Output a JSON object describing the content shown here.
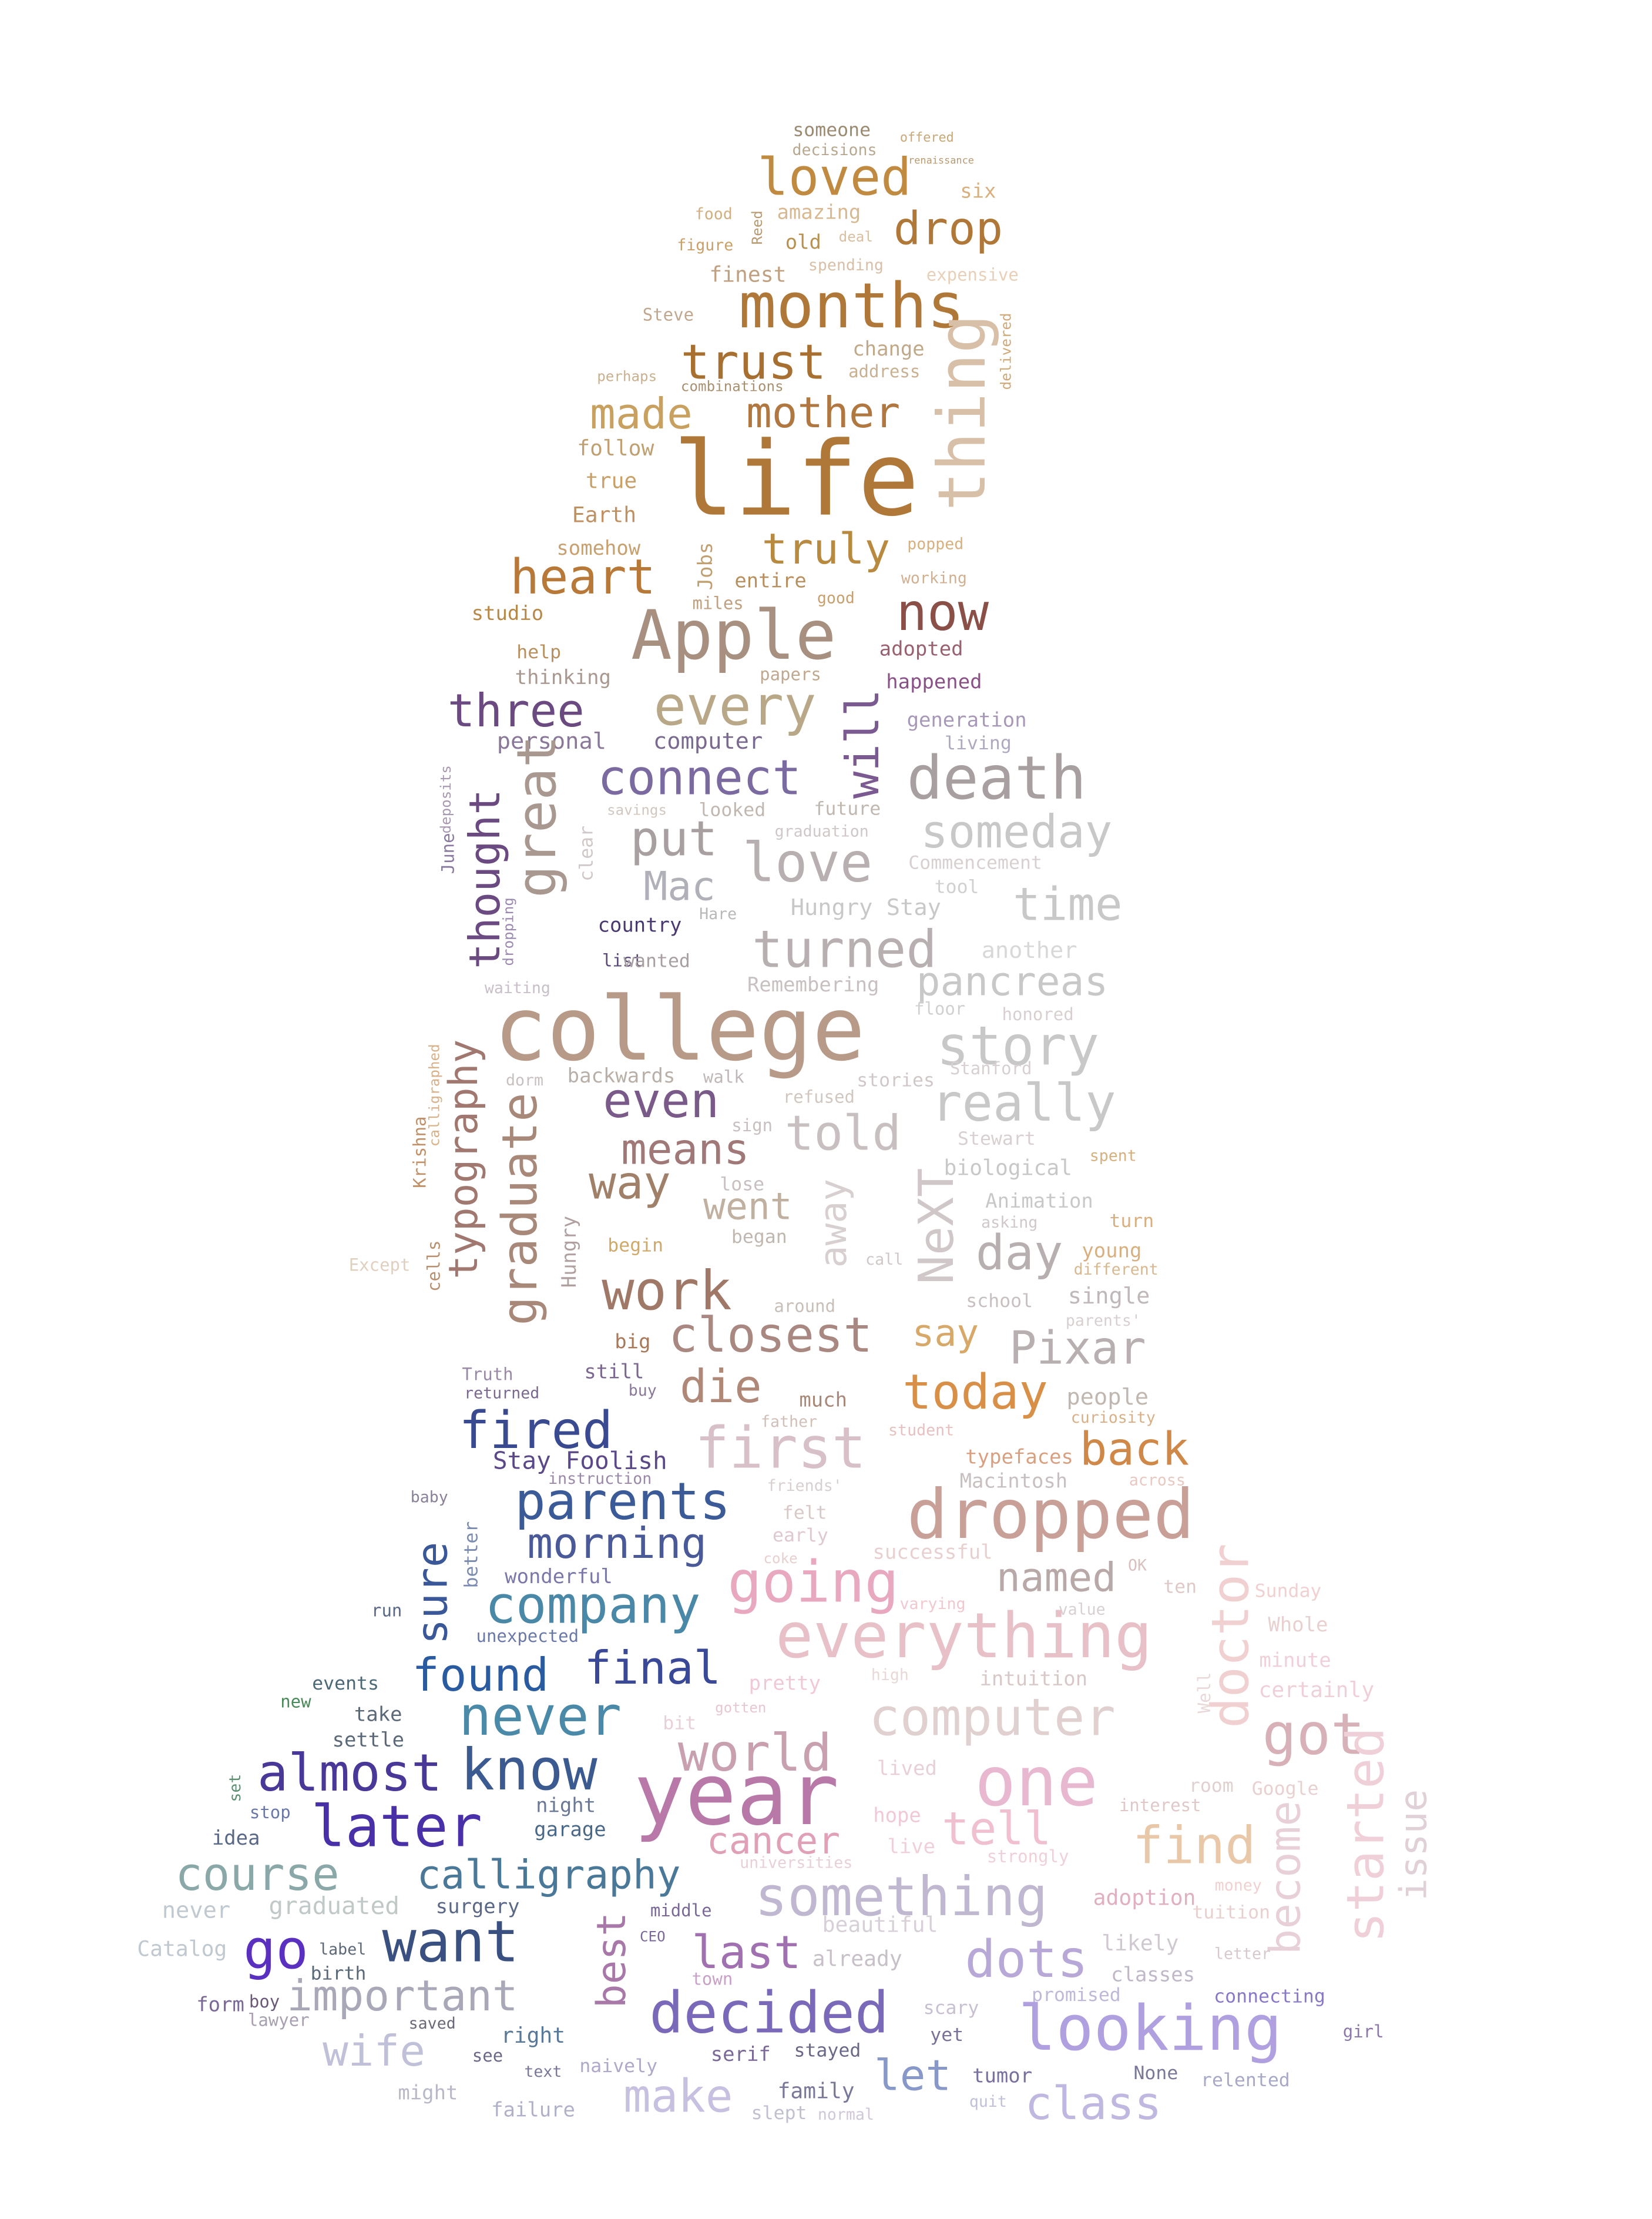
{
  "image": {
    "kind": "word-cloud",
    "shape": "seated-figure-silhouette",
    "background": "#ffffff",
    "palette": [
      "#b07838",
      "#c8a060",
      "#a8a0a0",
      "#6a4a80",
      "#2a5aa0",
      "#4a8aa8",
      "#5a30a8",
      "#e8a0b8",
      "#c0b0e0",
      "#d8c0a0"
    ]
  },
  "words": [
    {
      "t": "someone",
      "c": "#9a8a70"
    },
    {
      "t": "offered",
      "c": "#c8a878"
    },
    {
      "t": "decisions",
      "c": "#b8a890"
    },
    {
      "t": "loved",
      "c": "#c08a40"
    },
    {
      "t": "renaissance",
      "c": "#b89a70"
    },
    {
      "t": "six",
      "c": "#d8b080"
    },
    {
      "t": "food",
      "c": "#d0b080"
    },
    {
      "t": "amazing",
      "c": "#d8b890"
    },
    {
      "t": "Reed",
      "c": "#b89a70"
    },
    {
      "t": "drop",
      "c": "#b07838"
    },
    {
      "t": "figure",
      "c": "#c8a068"
    },
    {
      "t": "old",
      "c": "#b89050"
    },
    {
      "t": "deal",
      "c": "#d8c0a0"
    },
    {
      "t": "finest",
      "c": "#c0a080"
    },
    {
      "t": "spending",
      "c": "#d8c0a8"
    },
    {
      "t": "expensive",
      "c": "#e8d0b8"
    },
    {
      "t": "months",
      "c": "#b07838"
    },
    {
      "t": "Steve",
      "c": "#c0a890"
    },
    {
      "t": "trust",
      "c": "#a87030"
    },
    {
      "t": "change",
      "c": "#c0a888"
    },
    {
      "t": "address",
      "c": "#c8b090"
    },
    {
      "t": "thing",
      "c": "#d8c0a8"
    },
    {
      "t": "delivered",
      "c": "#d0a878"
    },
    {
      "t": "perhaps",
      "c": "#c8b090"
    },
    {
      "t": "combinations",
      "c": "#a89070"
    },
    {
      "t": "made",
      "c": "#c8a060"
    },
    {
      "t": "mother",
      "c": "#b07840"
    },
    {
      "t": "follow",
      "c": "#c0a070"
    },
    {
      "t": "life",
      "c": "#b07838"
    },
    {
      "t": "true",
      "c": "#c8a068"
    },
    {
      "t": "Earth",
      "c": "#c09060"
    },
    {
      "t": "somehow",
      "c": "#c8a070"
    },
    {
      "t": "Jobs",
      "c": "#c0a070"
    },
    {
      "t": "truly",
      "c": "#b88a40"
    },
    {
      "t": "popped",
      "c": "#d8b080"
    },
    {
      "t": "heart",
      "c": "#b87838"
    },
    {
      "t": "entire",
      "c": "#b89060"
    },
    {
      "t": "working",
      "c": "#d0b090"
    },
    {
      "t": "miles",
      "c": "#c0a080"
    },
    {
      "t": "good",
      "c": "#c8a070"
    },
    {
      "t": "studio",
      "c": "#b88848"
    },
    {
      "t": "Apple",
      "c": "#a89080"
    },
    {
      "t": "now",
      "c": "#8a5048"
    },
    {
      "t": "help",
      "c": "#b89060"
    },
    {
      "t": "adopted",
      "c": "#9a6070"
    },
    {
      "t": "thinking",
      "c": "#a89890"
    },
    {
      "t": "papers",
      "c": "#c0a890"
    },
    {
      "t": "happened",
      "c": "#8a5088"
    },
    {
      "t": "three",
      "c": "#6a4a80"
    },
    {
      "t": "every",
      "c": "#b8a888"
    },
    {
      "t": "will",
      "c": "#7a5a90"
    },
    {
      "t": "generation",
      "c": "#a898b8"
    },
    {
      "t": "personal",
      "c": "#8a7898"
    },
    {
      "t": "computer",
      "c": "#7a6a90"
    },
    {
      "t": "living",
      "c": "#b0a8c0"
    },
    {
      "t": "connect",
      "c": "#7a6aa0"
    },
    {
      "t": "death",
      "c": "#a8a0a0"
    },
    {
      "t": "great",
      "c": "#a89890"
    },
    {
      "t": "looked",
      "c": "#c0b8b0"
    },
    {
      "t": "future",
      "c": "#c0b8b0"
    },
    {
      "t": "savings",
      "c": "#d0c8c0"
    },
    {
      "t": "thought",
      "c": "#6a4a80"
    },
    {
      "t": "put",
      "c": "#a8a0a0"
    },
    {
      "t": "someday",
      "c": "#c8c8c8"
    },
    {
      "t": "graduation",
      "c": "#d0c8c8"
    },
    {
      "t": "June",
      "c": "#8a7aa0"
    },
    {
      "t": "deposits",
      "c": "#a898b0"
    },
    {
      "t": "clear",
      "c": "#d0c8c8"
    },
    {
      "t": "love",
      "c": "#b8b0b0"
    },
    {
      "t": "Commencement",
      "c": "#d8d0d0"
    },
    {
      "t": "Mac",
      "c": "#b0b0b8"
    },
    {
      "t": "tool",
      "c": "#d0d0d0"
    },
    {
      "t": "time",
      "c": "#c8c8c8"
    },
    {
      "t": "Hungry Stay",
      "c": "#c8c8c8"
    },
    {
      "t": "Hare",
      "c": "#b8b8b8"
    },
    {
      "t": "country",
      "c": "#4a3870"
    },
    {
      "t": "turned",
      "c": "#b8b0b0"
    },
    {
      "t": "another",
      "c": "#d8d8d8"
    },
    {
      "t": "list",
      "c": "#5a4878"
    },
    {
      "t": "wanted",
      "c": "#a8a0a0"
    },
    {
      "t": "dropping",
      "c": "#9a88b0"
    },
    {
      "t": "waiting",
      "c": "#c8c0c8"
    },
    {
      "t": "Remembering",
      "c": "#c8c0c0"
    },
    {
      "t": "pancreas",
      "c": "#c8c8c8"
    },
    {
      "t": "floor",
      "c": "#d0d0d0"
    },
    {
      "t": "college",
      "c": "#b89a88"
    },
    {
      "t": "story",
      "c": "#c8c8c8"
    },
    {
      "t": "honored",
      "c": "#d8d0d0"
    },
    {
      "t": "Stanford",
      "c": "#d8d0d0"
    },
    {
      "t": "calligraphed",
      "c": "#d8b088"
    },
    {
      "t": "typography",
      "c": "#a07870"
    },
    {
      "t": "dorm",
      "c": "#c8c0c0"
    },
    {
      "t": "backwards",
      "c": "#b8b0a8"
    },
    {
      "t": "walk",
      "c": "#c0b8b8"
    },
    {
      "t": "even",
      "c": "#7a5a88"
    },
    {
      "t": "sign",
      "c": "#c8c0c0"
    },
    {
      "t": "stories",
      "c": "#d0c8c8"
    },
    {
      "t": "really",
      "c": "#c8c8c8"
    },
    {
      "t": "refused",
      "c": "#d0c8c0"
    },
    {
      "t": "graduate",
      "c": "#a88878"
    },
    {
      "t": "means",
      "c": "#a07878"
    },
    {
      "t": "told",
      "c": "#c8c0c0"
    },
    {
      "t": "Stewart",
      "c": "#d8d0d0"
    },
    {
      "t": "Krishna",
      "c": "#c09068"
    },
    {
      "t": "way",
      "c": "#a08068"
    },
    {
      "t": "lose",
      "c": "#c8c0c0"
    },
    {
      "t": "biological",
      "c": "#c8c8c8"
    },
    {
      "t": "spent",
      "c": "#d8b080"
    },
    {
      "t": "went",
      "c": "#c0b0a0"
    },
    {
      "t": "away",
      "c": "#d8d0d0"
    },
    {
      "t": "Animation",
      "c": "#c8c8c8"
    },
    {
      "t": "turn",
      "c": "#d8b080"
    },
    {
      "t": "Hungry",
      "c": "#b0a0a0"
    },
    {
      "t": "began",
      "c": "#c0b8b0"
    },
    {
      "t": "asking",
      "c": "#d0c8c8"
    },
    {
      "t": "NeXT",
      "c": "#d0c8c8"
    },
    {
      "t": "day",
      "c": "#b8b0b0"
    },
    {
      "t": "young",
      "c": "#d8b080"
    },
    {
      "t": "begin",
      "c": "#d0a868"
    },
    {
      "t": "different",
      "c": "#d8b890"
    },
    {
      "t": "cells",
      "c": "#b89070"
    },
    {
      "t": "work",
      "c": "#a07868"
    },
    {
      "t": "call",
      "c": "#d0c8c8"
    },
    {
      "t": "single",
      "c": "#c0b8b8"
    },
    {
      "t": "Except",
      "c": "#e0d0c0"
    },
    {
      "t": "school",
      "c": "#c8c0c0"
    },
    {
      "t": "around",
      "c": "#c8c0b8"
    },
    {
      "t": "closest",
      "c": "#a88880"
    },
    {
      "t": "say",
      "c": "#d8a868"
    },
    {
      "t": "Pixar",
      "c": "#b8b0b0"
    },
    {
      "t": "parents'",
      "c": "#d8d0d0"
    },
    {
      "t": "big",
      "c": "#a87858"
    },
    {
      "t": "Truth",
      "c": "#9a88a8"
    },
    {
      "t": "still",
      "c": "#7a6890"
    },
    {
      "t": "die",
      "c": "#b08878"
    },
    {
      "t": "today",
      "c": "#d89048"
    },
    {
      "t": "people",
      "c": "#c0b8b0"
    },
    {
      "t": "returned",
      "c": "#7a6890"
    },
    {
      "t": "buy",
      "c": "#8a7898"
    },
    {
      "t": "much",
      "c": "#a88878"
    },
    {
      "t": "curiosity",
      "c": "#d8b088"
    },
    {
      "t": "fired",
      "c": "#3a4a90"
    },
    {
      "t": "father",
      "c": "#d0c0b8"
    },
    {
      "t": "first",
      "c": "#d8c0c8"
    },
    {
      "t": "student",
      "c": "#e8c0c0"
    },
    {
      "t": "typefaces",
      "c": "#d8a080"
    },
    {
      "t": "back",
      "c": "#d08848"
    },
    {
      "t": "Stay Foolish",
      "c": "#5a4888"
    },
    {
      "t": "instruction",
      "c": "#9a88a8"
    },
    {
      "t": "friends'",
      "c": "#d8d0d0"
    },
    {
      "t": "Macintosh",
      "c": "#c8c0c0"
    },
    {
      "t": "across",
      "c": "#e8c8c0"
    },
    {
      "t": "baby",
      "c": "#8a8098"
    },
    {
      "t": "parents",
      "c": "#3a5a98"
    },
    {
      "t": "dropped",
      "c": "#c8a098"
    },
    {
      "t": "felt",
      "c": "#d8c8c8"
    },
    {
      "t": "better",
      "c": "#7a8ab0"
    },
    {
      "t": "morning",
      "c": "#4a5a98"
    },
    {
      "t": "early",
      "c": "#e0c8d0"
    },
    {
      "t": "successful",
      "c": "#e8d0d0"
    },
    {
      "t": "coke",
      "c": "#e8d0d0"
    },
    {
      "t": "doctor",
      "c": "#f0d0d0"
    },
    {
      "t": "wonderful",
      "c": "#7a78a8"
    },
    {
      "t": "going",
      "c": "#e8a8c0"
    },
    {
      "t": "named",
      "c": "#b8a8a8"
    },
    {
      "t": "OK",
      "c": "#d8c0c0"
    },
    {
      "t": "ten",
      "c": "#e0c8c8"
    },
    {
      "t": "sure",
      "c": "#3a5898"
    },
    {
      "t": "company",
      "c": "#4a88a8"
    },
    {
      "t": "run",
      "c": "#5a6888"
    },
    {
      "t": "varying",
      "c": "#f0c8d0"
    },
    {
      "t": "value",
      "c": "#d8d0d0"
    },
    {
      "t": "Sunday",
      "c": "#f0d0d0"
    },
    {
      "t": "Whole",
      "c": "#e8d0d0"
    },
    {
      "t": "unexpected",
      "c": "#6a78a8"
    },
    {
      "t": "everything",
      "c": "#e8c0c8"
    },
    {
      "t": "Well",
      "c": "#e8d8d8"
    },
    {
      "t": "minute",
      "c": "#f0d0d8"
    },
    {
      "t": "events",
      "c": "#4a6878"
    },
    {
      "t": "found",
      "c": "#2a5aa0"
    },
    {
      "t": "final",
      "c": "#3a4898"
    },
    {
      "t": "pretty",
      "c": "#f0c8d8"
    },
    {
      "t": "high",
      "c": "#e8d8d8"
    },
    {
      "t": "intuition",
      "c": "#d8c8c8"
    },
    {
      "t": "certainly",
      "c": "#f0d0d8"
    },
    {
      "t": "new",
      "c": "#4a8a5a"
    },
    {
      "t": "take",
      "c": "#5a6878"
    },
    {
      "t": "never",
      "c": "#4a8aa8"
    },
    {
      "t": "bit",
      "c": "#e8d0d8"
    },
    {
      "t": "gotten",
      "c": "#e8c8d0"
    },
    {
      "t": "computer",
      "c": "#e0d0d0"
    },
    {
      "t": "got",
      "c": "#d8b0b8"
    },
    {
      "t": "settle",
      "c": "#5a6878"
    },
    {
      "t": "world",
      "c": "#c8a0b0"
    },
    {
      "t": "almost",
      "c": "#4a3898"
    },
    {
      "t": "know",
      "c": "#3a5a90"
    },
    {
      "t": "lived",
      "c": "#e8d0d8"
    },
    {
      "t": "one",
      "c": "#e8b8d0"
    },
    {
      "t": "room",
      "c": "#e0d0d0"
    },
    {
      "t": "Google",
      "c": "#e8d0d0"
    },
    {
      "t": "started",
      "c": "#f0d0d8"
    },
    {
      "t": "year",
      "c": "#b878a8"
    },
    {
      "t": "set",
      "c": "#5a9070"
    },
    {
      "t": "night",
      "c": "#6a7898"
    },
    {
      "t": "interest",
      "c": "#e0c8c8"
    },
    {
      "t": "later",
      "c": "#4a30a8"
    },
    {
      "t": "stop",
      "c": "#6a78a8"
    },
    {
      "t": "idea",
      "c": "#5a6888"
    },
    {
      "t": "garage",
      "c": "#4a6888"
    },
    {
      "t": "cancer",
      "c": "#e0a0b8"
    },
    {
      "t": "hope",
      "c": "#f0c8d8"
    },
    {
      "t": "tell",
      "c": "#f0c0d0"
    },
    {
      "t": "find",
      "c": "#e8c8a8"
    },
    {
      "t": "become",
      "c": "#e8d0d8"
    },
    {
      "t": "issue",
      "c": "#e0d0d8"
    },
    {
      "t": "course",
      "c": "#8aa8a8"
    },
    {
      "t": "calligraphy",
      "c": "#4a7898"
    },
    {
      "t": "live",
      "c": "#f0d0d8"
    },
    {
      "t": "strongly",
      "c": "#f0d0d8"
    },
    {
      "t": "universities",
      "c": "#e8d0d8"
    },
    {
      "t": "money",
      "c": "#f0d0d0"
    },
    {
      "t": "tuition",
      "c": "#e8d0d0"
    },
    {
      "t": "never",
      "c": "#c0c8d0"
    },
    {
      "t": "graduated",
      "c": "#c0c8c8"
    },
    {
      "t": "surgery",
      "c": "#5a6888"
    },
    {
      "t": "middle",
      "c": "#7a6898"
    },
    {
      "t": "something",
      "c": "#c0b8d0"
    },
    {
      "t": "adoption",
      "c": "#e0b0c0"
    },
    {
      "t": "Catalog",
      "c": "#c0c8d0"
    },
    {
      "t": "go",
      "c": "#5a30c0"
    },
    {
      "t": "want",
      "c": "#3a5080"
    },
    {
      "t": "best",
      "c": "#a878a8"
    },
    {
      "t": "CEO",
      "c": "#7a6898"
    },
    {
      "t": "last",
      "c": "#a070b0"
    },
    {
      "t": "beautiful",
      "c": "#d8d0d8"
    },
    {
      "t": "likely",
      "c": "#d0c8d0"
    },
    {
      "t": "letter",
      "c": "#d8c8d0"
    },
    {
      "t": "label",
      "c": "#5a6878"
    },
    {
      "t": "birth",
      "c": "#5a6878"
    },
    {
      "t": "town",
      "c": "#c8a0c8"
    },
    {
      "t": "already",
      "c": "#c8c0c8"
    },
    {
      "t": "dots",
      "c": "#b8a8d8"
    },
    {
      "t": "classes",
      "c": "#c0b8c8"
    },
    {
      "t": "form",
      "c": "#7a6898"
    },
    {
      "t": "boy",
      "c": "#6a5878"
    },
    {
      "t": "important",
      "c": "#a8a8b8"
    },
    {
      "t": "decided",
      "c": "#7a68b8"
    },
    {
      "t": "scary",
      "c": "#c8c0d0"
    },
    {
      "t": "promised",
      "c": "#c0b8d8"
    },
    {
      "t": "connecting",
      "c": "#8a78c8"
    },
    {
      "t": "girl",
      "c": "#8a78a8"
    },
    {
      "t": "lawyer",
      "c": "#a8a0b0"
    },
    {
      "t": "saved",
      "c": "#6a6878"
    },
    {
      "t": "right",
      "c": "#5a7898"
    },
    {
      "t": "yet",
      "c": "#7a7098"
    },
    {
      "t": "looking",
      "c": "#b0a0e0"
    },
    {
      "t": "wife",
      "c": "#c0c0d8"
    },
    {
      "t": "see",
      "c": "#6a6888"
    },
    {
      "t": "serif",
      "c": "#7a6898"
    },
    {
      "t": "stayed",
      "c": "#6a6888"
    },
    {
      "t": "naively",
      "c": "#b0a8c8"
    },
    {
      "t": "text",
      "c": "#7a7898"
    },
    {
      "t": "let",
      "c": "#8898c8"
    },
    {
      "t": "tumor",
      "c": "#7a70a0"
    },
    {
      "t": "None",
      "c": "#7a7898"
    },
    {
      "t": "relented",
      "c": "#a8a8c8"
    },
    {
      "t": "might",
      "c": "#b8b8c8"
    },
    {
      "t": "make",
      "c": "#c8c0e0"
    },
    {
      "t": "family",
      "c": "#7a7898"
    },
    {
      "t": "quit",
      "c": "#c0c0d8"
    },
    {
      "t": "class",
      "c": "#c0b8e0"
    },
    {
      "t": "failure",
      "c": "#b0b0c8"
    },
    {
      "t": "slept",
      "c": "#c0c0d0"
    },
    {
      "t": "normal",
      "c": "#d0c8d8"
    }
  ]
}
